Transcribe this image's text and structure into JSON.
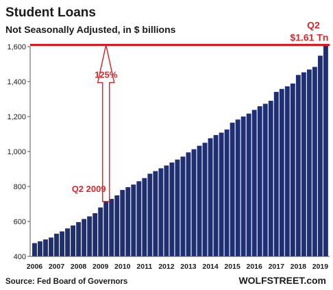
{
  "chart_data": {
    "type": "bar",
    "title": "Student Loans",
    "subtitle": "Not Seasonally Adjusted, in $ billions",
    "xlabel": "",
    "ylabel": "",
    "ylim": [
      400,
      1600
    ],
    "yticks": [
      "400",
      "600",
      "800",
      "1,000",
      "1,200",
      "1,400",
      "1,600"
    ],
    "x_tick_labels": [
      "2006",
      "2007",
      "2008",
      "2009",
      "2010",
      "2011",
      "2012",
      "2013",
      "2014",
      "2015",
      "2016",
      "2017",
      "2018",
      "2019"
    ],
    "grid": false,
    "categories": [
      "2006 Q1",
      "2006 Q2",
      "2006 Q3",
      "2006 Q4",
      "2007 Q1",
      "2007 Q2",
      "2007 Q3",
      "2007 Q4",
      "2008 Q1",
      "2008 Q2",
      "2008 Q3",
      "2008 Q4",
      "2009 Q1",
      "2009 Q2",
      "2009 Q3",
      "2009 Q4",
      "2010 Q1",
      "2010 Q2",
      "2010 Q3",
      "2010 Q4",
      "2011 Q1",
      "2011 Q2",
      "2011 Q3",
      "2011 Q4",
      "2012 Q1",
      "2012 Q2",
      "2012 Q3",
      "2012 Q4",
      "2013 Q1",
      "2013 Q2",
      "2013 Q3",
      "2013 Q4",
      "2014 Q1",
      "2014 Q2",
      "2014 Q3",
      "2014 Q4",
      "2015 Q1",
      "2015 Q2",
      "2015 Q3",
      "2015 Q4",
      "2016 Q1",
      "2016 Q2",
      "2016 Q3",
      "2016 Q4",
      "2017 Q1",
      "2017 Q2",
      "2017 Q3",
      "2017 Q4",
      "2018 Q1",
      "2018 Q2",
      "2018 Q3",
      "2018 Q4",
      "2019 Q1",
      "2019 Q2"
    ],
    "values": [
      476,
      486,
      497,
      508,
      530,
      543,
      560,
      577,
      596,
      614,
      629,
      647,
      680,
      714,
      729,
      749,
      780,
      796,
      811,
      830,
      848,
      873,
      888,
      904,
      920,
      937,
      954,
      971,
      995,
      1013,
      1033,
      1050,
      1076,
      1094,
      1108,
      1126,
      1165,
      1183,
      1200,
      1217,
      1238,
      1259,
      1273,
      1290,
      1341,
      1358,
      1373,
      1389,
      1438,
      1453,
      1469,
      1484,
      1548,
      1610
    ],
    "bar_color": "#1f2f73",
    "reference_line": {
      "value": 1610,
      "color": "#e2191c"
    },
    "annotations": {
      "start_label": "Q2 2009",
      "end_label_line1": "Q2",
      "end_label_line2": "$1.61 Tn",
      "growth_label": "125%"
    },
    "source": "Source: Fed Board of Governors",
    "brand": "WOLFSTREET.com"
  }
}
